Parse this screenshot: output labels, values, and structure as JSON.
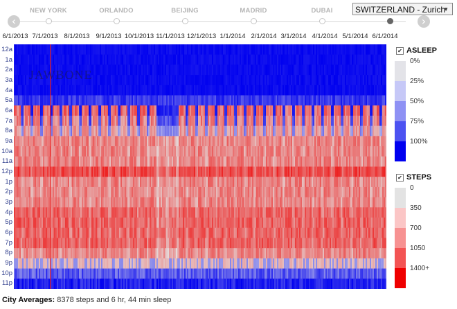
{
  "nav": {
    "cities": [
      "NEW YORK",
      "ORLANDO",
      "BEIJING",
      "MADRID",
      "DUBAI"
    ],
    "active_index": 5,
    "prev_icon": "chevron-left-icon",
    "next_icon": "chevron-right-icon"
  },
  "city_select": {
    "value": "SWITZERLAND - Zurich"
  },
  "dates": [
    "6/1/2013",
    "7/1/2013",
    "8/1/2013",
    "9/1/2013",
    "10/1/2013",
    "11/1/2013",
    "12/1/2013",
    "1/1/2014",
    "2/1/2014",
    "3/1/2014",
    "4/1/2014",
    "5/1/2014",
    "6/1/2014"
  ],
  "hours": [
    "12a",
    "1a",
    "2a",
    "3a",
    "4a",
    "5a",
    "6a",
    "7a",
    "8a",
    "9a",
    "10a",
    "11a",
    "12p",
    "1p",
    "2p",
    "3p",
    "4p",
    "5p",
    "6p",
    "7p",
    "8p",
    "9p",
    "10p",
    "11p"
  ],
  "watermark": "JAWBONE",
  "legend": {
    "asleep": {
      "title": "ASLEEP",
      "labels": [
        "0%",
        "25%",
        "50%",
        "75%",
        "100%"
      ],
      "colors": [
        "#e3e3e8",
        "#c6c8f7",
        "#8e91f4",
        "#4c52f1",
        "#0000ef"
      ]
    },
    "steps": {
      "title": "STEPS",
      "labels": [
        "0",
        "350",
        "700",
        "1050",
        "1400+"
      ],
      "colors": [
        "#e3e3e3",
        "#fbc6c6",
        "#f79292",
        "#f35454",
        "#ef0000"
      ]
    }
  },
  "summary": {
    "label": "City Averages:",
    "text": "8378 steps and 6 hr, 44 min sleep"
  }
}
